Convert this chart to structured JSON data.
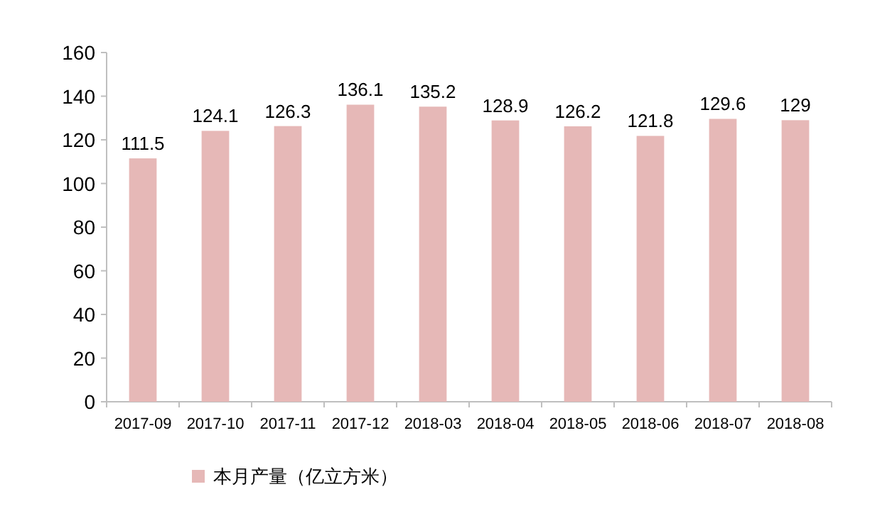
{
  "chart_data": {
    "type": "bar",
    "categories": [
      "2017-09",
      "2017-10",
      "2017-11",
      "2017-12",
      "2018-03",
      "2018-04",
      "2018-05",
      "2018-06",
      "2018-07",
      "2018-08"
    ],
    "series": [
      {
        "name": "本月产量（亿立方米）",
        "color": "#e6b8b7",
        "values": [
          111.5,
          124.1,
          126.3,
          136.1,
          135.2,
          128.9,
          126.2,
          121.8,
          129.6,
          129
        ]
      }
    ],
    "ylim": [
      0,
      160
    ],
    "yticks": [
      0,
      20,
      40,
      60,
      80,
      100,
      120,
      140,
      160
    ],
    "data_labels": true,
    "legend": "bottom"
  }
}
